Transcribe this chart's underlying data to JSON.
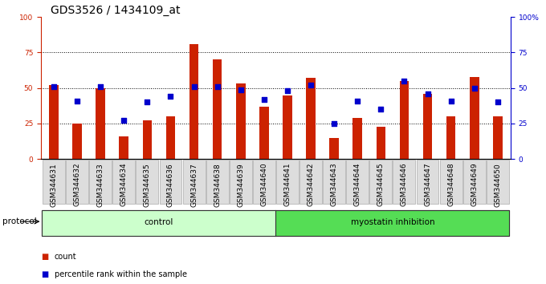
{
  "title": "GDS3526 / 1434109_at",
  "samples": [
    "GSM344631",
    "GSM344632",
    "GSM344633",
    "GSM344634",
    "GSM344635",
    "GSM344636",
    "GSM344637",
    "GSM344638",
    "GSM344639",
    "GSM344640",
    "GSM344641",
    "GSM344642",
    "GSM344643",
    "GSM344644",
    "GSM344645",
    "GSM344646",
    "GSM344647",
    "GSM344648",
    "GSM344649",
    "GSM344650"
  ],
  "counts": [
    52,
    25,
    50,
    16,
    27,
    30,
    81,
    70,
    53,
    37,
    45,
    57,
    15,
    29,
    23,
    55,
    46,
    30,
    58,
    30
  ],
  "percentiles": [
    51,
    41,
    51,
    27,
    40,
    44,
    51,
    51,
    49,
    42,
    48,
    52,
    25,
    41,
    35,
    55,
    46,
    41,
    50,
    40
  ],
  "control_count": 10,
  "myostatin_count": 10,
  "bar_color": "#cc2200",
  "dot_color": "#0000cc",
  "control_bg": "#ccffcc",
  "myostatin_bg": "#55dd55",
  "tick_bg": "#dddddd",
  "protocol_label": "protocol",
  "control_label": "control",
  "myostatin_label": "myostatin inhibition",
  "legend_count": "count",
  "legend_percentile": "percentile rank within the sample",
  "ylim": [
    0,
    100
  ],
  "yticks": [
    0,
    25,
    50,
    75,
    100
  ],
  "grid_lines": [
    25,
    50,
    75
  ],
  "title_fontsize": 10,
  "tick_fontsize": 6.5,
  "label_fontsize": 7.5,
  "bar_width": 0.4
}
